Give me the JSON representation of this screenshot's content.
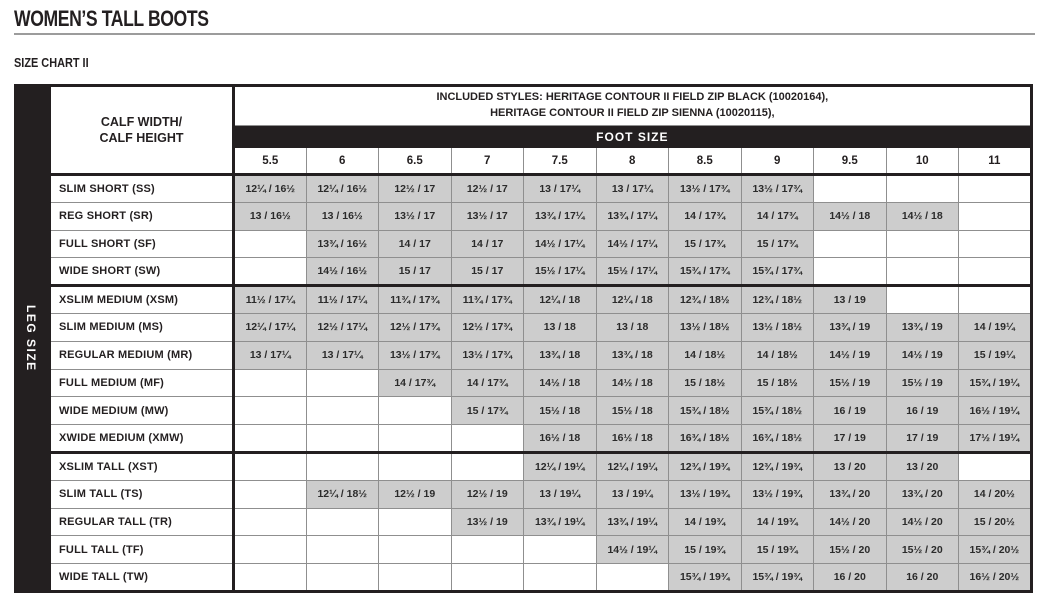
{
  "page": {
    "title": "WOMEN’S TALL BOOTS",
    "subtitle": "SIZE CHART II"
  },
  "table": {
    "corner_label_line1": "CALF WIDTH/",
    "corner_label_line2": "CALF HEIGHT",
    "included_line1": "INCLUDED STYLES: HERITAGE CONTOUR II FIELD ZIP BLACK (10020164),",
    "included_line2": "HERITAGE CONTOUR II FIELD ZIP SIENNA (10020115),",
    "foot_size_label": "FOOT SIZE",
    "leg_size_label": "LEG SIZE",
    "foot_sizes": [
      "5.5",
      "6",
      "6.5",
      "7",
      "7.5",
      "8",
      "8.5",
      "9",
      "9.5",
      "10",
      "11"
    ],
    "rows": [
      {
        "label": "SLIM SHORT (SS)",
        "group_start": false,
        "cells": [
          "12¼ / 16½",
          "12¼ / 16½",
          "12½ / 17",
          "12½ / 17",
          "13 / 17¼",
          "13 / 17¼",
          "13½ / 17¾",
          "13½ / 17¾",
          "",
          "",
          ""
        ]
      },
      {
        "label": "REG SHORT (SR)",
        "group_start": false,
        "cells": [
          "13 / 16½",
          "13 / 16½",
          "13½ / 17",
          "13½ / 17",
          "13¾ / 17¼",
          "13¾ / 17¼",
          "14 / 17¾",
          "14 / 17¾",
          "14½ / 18",
          "14½ / 18",
          ""
        ]
      },
      {
        "label": "FULL SHORT (SF)",
        "group_start": false,
        "cells": [
          "",
          "13¾ / 16½",
          "14 / 17",
          "14 / 17",
          "14½ / 17¼",
          "14½ / 17¼",
          "15 / 17¾",
          "15 / 17¾",
          "",
          "",
          ""
        ]
      },
      {
        "label": "WIDE SHORT (SW)",
        "group_start": false,
        "cells": [
          "",
          "14½ / 16½",
          "15 / 17",
          "15 / 17",
          "15½ / 17¼",
          "15½ / 17¼",
          "15¾ / 17¾",
          "15¾ / 17¾",
          "",
          "",
          ""
        ]
      },
      {
        "label": "XSLIM MEDIUM (XSM)",
        "group_start": true,
        "cells": [
          "11½ / 17¼",
          "11½ / 17¼",
          "11¾ / 17¾",
          "11¾ / 17¾",
          "12¼ / 18",
          "12¼ / 18",
          "12¾ / 18½",
          "12¾ / 18½",
          "13 / 19",
          "",
          ""
        ]
      },
      {
        "label": "SLIM MEDIUM (MS)",
        "group_start": false,
        "cells": [
          "12¼ / 17¼",
          "12½ / 17¼",
          "12½ / 17¾",
          "12½ / 17¾",
          "13 / 18",
          "13 / 18",
          "13½ / 18½",
          "13½ / 18½",
          "13¾ / 19",
          "13¾ / 19",
          "14 / 19¼"
        ]
      },
      {
        "label": "REGULAR  MEDIUM (MR)",
        "group_start": false,
        "cells": [
          "13 / 17¼",
          "13 / 17¼",
          "13½ / 17¾",
          "13½ / 17¾",
          "13¾ / 18",
          "13¾ / 18",
          "14 / 18½",
          "14 / 18½",
          "14½ / 19",
          "14½ / 19",
          "15 / 19¼"
        ]
      },
      {
        "label": "FULL MEDIUM (MF)",
        "group_start": false,
        "cells": [
          "",
          "",
          "14 / 17¾",
          "14 / 17¾",
          "14½ / 18",
          "14½ / 18",
          "15 / 18½",
          "15 / 18½",
          "15½ / 19",
          "15½ / 19",
          "15¾ / 19¼"
        ]
      },
      {
        "label": "WIDE MEDIUM (MW)",
        "group_start": false,
        "cells": [
          "",
          "",
          "",
          "15 / 17¾",
          "15½ / 18",
          "15½ / 18",
          "15¾ / 18½",
          "15¾ / 18½",
          "16 / 19",
          "16 / 19",
          "16½ / 19¼"
        ]
      },
      {
        "label": "XWIDE MEDIUM (XMW)",
        "group_start": false,
        "cells": [
          "",
          "",
          "",
          "",
          "16½ / 18",
          "16½ / 18",
          "16¾ / 18½",
          "16¾ / 18½",
          "17 / 19",
          "17 / 19",
          "17½ / 19¼"
        ]
      },
      {
        "label": "XSLIM TALL (XST)",
        "group_start": true,
        "cells": [
          "",
          "",
          "",
          "",
          "12¼ / 19¼",
          "12¼ / 19¼",
          "12¾ / 19¾",
          "12¾ / 19¾",
          "13 / 20",
          "13 / 20",
          ""
        ]
      },
      {
        "label": "SLIM TALL (TS)",
        "group_start": false,
        "cells": [
          "",
          "12¼ / 18½",
          "12½ / 19",
          "12½ / 19",
          "13 / 19¼",
          "13 / 19¼",
          "13½ / 19¾",
          "13½ / 19¾",
          "13¾ / 20",
          "13¾ / 20",
          "14 / 20½"
        ]
      },
      {
        "label": "REGULAR TALL (TR)",
        "group_start": false,
        "cells": [
          "",
          "",
          "",
          "13½ / 19",
          "13¾ / 19¼",
          "13¾ / 19¼",
          "14 / 19¾",
          "14 / 19¾",
          "14½ / 20",
          "14½ / 20",
          "15 / 20½"
        ]
      },
      {
        "label": "FULL TALL (TF)",
        "group_start": false,
        "cells": [
          "",
          "",
          "",
          "",
          "",
          "14½ / 19¼",
          "15 / 19¾",
          "15 / 19¾",
          "15½ / 20",
          "15½ / 20",
          "15¾ / 20½"
        ]
      },
      {
        "label": "WIDE TALL (TW)",
        "group_start": false,
        "cells": [
          "",
          "",
          "",
          "",
          "",
          "",
          "15¾ / 19¾",
          "15¾ / 19¾",
          "16 / 20",
          "16 / 20",
          "16½ / 20½"
        ]
      }
    ]
  },
  "colors": {
    "black": "#231f20",
    "cell_fill": "#cdcdcd",
    "grid_line": "#8f8f8f",
    "title_rule": "#9c9c9c",
    "header_text_on_black": "#ffffff"
  }
}
